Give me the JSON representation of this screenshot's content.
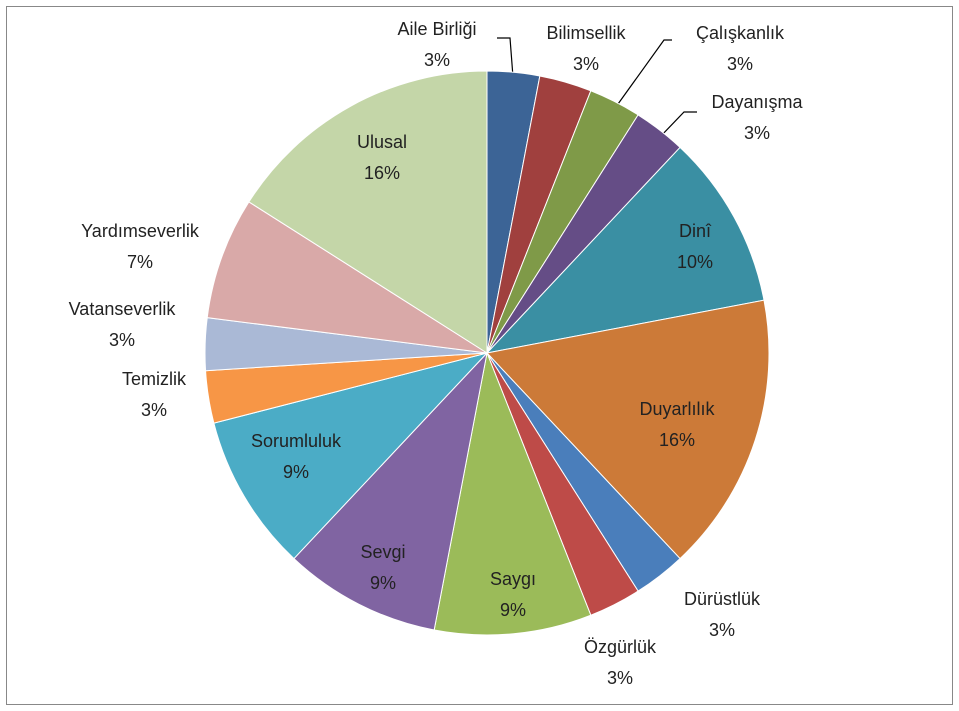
{
  "chart_data": {
    "type": "pie",
    "categories": [
      "Aile Birliği",
      "Bilimsellik",
      "Çalışkanlık",
      "Dayanışma",
      "Dinî",
      "Duyarlılık",
      "Dürüstlük",
      "Özgürlük",
      "Saygı",
      "Sevgi",
      "Sorumluluk",
      "Temizlik",
      "Vatanseverlik",
      "Yardımseverlik",
      "Ulusal"
    ],
    "values": [
      3,
      3,
      3,
      3,
      10,
      16,
      3,
      3,
      9,
      9,
      9,
      3,
      3,
      7,
      16
    ],
    "value_labels": [
      "3%",
      "3%",
      "3%",
      "3%",
      "10%",
      "16%",
      "3%",
      "3%",
      "9%",
      "9%",
      "9%",
      "3%",
      "3%",
      "7%",
      "16%"
    ],
    "colors": [
      "#3c6496",
      "#a0403e",
      "#7f9a48",
      "#654d86",
      "#3a8fa3",
      "#cc7a38",
      "#4a7ebb",
      "#be4b48",
      "#9bbb59",
      "#8064a2",
      "#4bacc6",
      "#f79646",
      "#aab9d6",
      "#d9a9a8",
      "#c4d6a8"
    ]
  }
}
